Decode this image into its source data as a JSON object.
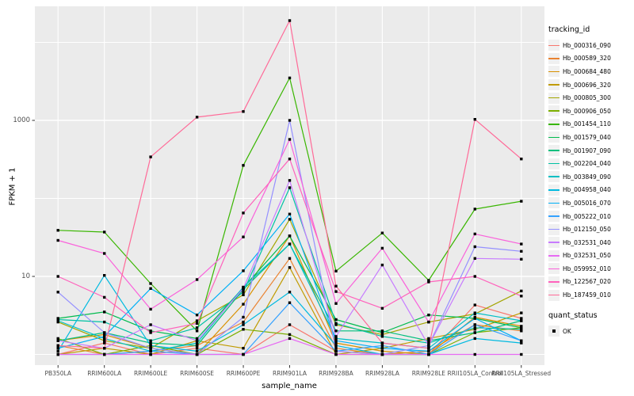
{
  "chart_data": {
    "type": "line",
    "title": "",
    "xlabel": "sample_name",
    "ylabel": "FPKM + 1",
    "y_scale": "log10",
    "y_tick_labels": [
      "1000",
      "10"
    ],
    "y_tick_values": [
      1000,
      10
    ],
    "y_gridlines": [
      1,
      10,
      100,
      1000,
      10000
    ],
    "ylim": [
      0.9,
      28000
    ],
    "grid": true,
    "legend_position": "right",
    "legend_title": "tracking_id",
    "panel_bg": "#EBEBEB",
    "grid_color": "#FFFFFF",
    "point_color": "#000000",
    "categories": [
      "PB350LA",
      "RRIM600LA",
      "RRIM600LE",
      "RRIM600SE",
      "RRIM600PE",
      "RRIM901LA",
      "RRIM928BA",
      "RRIM928LA",
      "RRIM928LE",
      "RRII105LA_Control",
      "RRII105LA_Stressed"
    ],
    "series": [
      {
        "name": "Hb_000316_090",
        "color": "#F8766D",
        "values": [
          1.0,
          1.4,
          1.0,
          1.2,
          1.0,
          2.4,
          1.1,
          1.0,
          1.0,
          4.3,
          2.9
        ]
      },
      {
        "name": "Hb_000589_320",
        "color": "#EA8331",
        "values": [
          1.3,
          1.0,
          1.1,
          1.3,
          2.6,
          17,
          1.2,
          1.0,
          1.1,
          2.4,
          2.0
        ]
      },
      {
        "name": "Hb_000684_480",
        "color": "#D89000",
        "values": [
          1.5,
          1.8,
          1.2,
          1.0,
          4.4,
          33,
          1.4,
          1.1,
          1.0,
          3.0,
          2.3
        ]
      },
      {
        "name": "Hb_000696_320",
        "color": "#C09B00",
        "values": [
          1.0,
          1.2,
          1.0,
          1.5,
          1.2,
          13,
          1.0,
          1.2,
          1.6,
          2.1,
          3.4
        ]
      },
      {
        "name": "Hb_000805_300",
        "color": "#A3A500",
        "values": [
          2.6,
          1.5,
          1.2,
          2.7,
          5.8,
          54,
          2.4,
          1.8,
          2.6,
          3.3,
          6.5
        ]
      },
      {
        "name": "Hb_000906_050",
        "color": "#7CAE00",
        "values": [
          1.6,
          1.0,
          1.3,
          1.0,
          2.1,
          1.8,
          1.0,
          1.0,
          1.0,
          1.9,
          2.2
        ]
      },
      {
        "name": "Hb_001454_110",
        "color": "#39B600",
        "values": [
          39,
          37,
          8.1,
          2.0,
          265,
          3500,
          11.7,
          36,
          8.9,
          73,
          92
        ]
      },
      {
        "name": "Hb_001579_040",
        "color": "#00BB4E",
        "values": [
          2.9,
          3.5,
          2.0,
          1.6,
          7.2,
          33,
          2.8,
          1.9,
          3.2,
          2.9,
          2.2
        ]
      },
      {
        "name": "Hb_001907_090",
        "color": "#00BF7D",
        "values": [
          1.5,
          1.9,
          1.4,
          1.3,
          6.8,
          26,
          2.0,
          2.0,
          1.5,
          1.9,
          2.7
        ]
      },
      {
        "name": "Hb_002204_040",
        "color": "#00C1A3",
        "values": [
          2.8,
          2.6,
          1.5,
          2.2,
          6.3,
          137,
          2.5,
          1.7,
          1.4,
          2.2,
          2.1
        ]
      },
      {
        "name": "Hb_003849_090",
        "color": "#00BFC4",
        "values": [
          2.7,
          1.6,
          1.1,
          1.4,
          7.3,
          26,
          1.6,
          1.4,
          1.2,
          3.4,
          2.7
        ]
      },
      {
        "name": "Hb_004958_040",
        "color": "#00BAE0",
        "values": [
          1.1,
          10.3,
          1.3,
          1.1,
          2.4,
          6.3,
          1.3,
          1.0,
          1.0,
          1.6,
          1.4
        ]
      },
      {
        "name": "Hb_005016_070",
        "color": "#00B0F6",
        "values": [
          1.2,
          1.7,
          7.0,
          3.2,
          11.8,
          63,
          1.5,
          1.2,
          1.1,
          2.9,
          1.5
        ]
      },
      {
        "name": "Hb_005222_010",
        "color": "#35A2FF",
        "values": [
          1.0,
          1.0,
          1.1,
          1.0,
          1.0,
          4.6,
          1.1,
          1.3,
          1.0,
          2.4,
          1.5
        ]
      },
      {
        "name": "Hb_012150_050",
        "color": "#9590FF",
        "values": [
          6.3,
          1.9,
          1.2,
          1.0,
          3.0,
          1000,
          1.1,
          1.0,
          1.3,
          24,
          21
        ]
      },
      {
        "name": "Hb_032531_040",
        "color": "#C77CFF",
        "values": [
          1.5,
          1.2,
          2.4,
          1.5,
          7.0,
          170,
          1.7,
          14,
          1.3,
          17,
          16.6
        ]
      },
      {
        "name": "Hb_032531_050",
        "color": "#E76BF3",
        "values": [
          1.0,
          1.0,
          1.0,
          1.0,
          1.0,
          1.6,
          1.0,
          1.0,
          1.0,
          1.0,
          1.0
        ]
      },
      {
        "name": "Hb_059952_010",
        "color": "#FA62DB",
        "values": [
          29,
          19.7,
          3.8,
          9.1,
          32,
          570,
          4.5,
          23,
          2.6,
          35,
          26
        ]
      },
      {
        "name": "Hb_122567_020",
        "color": "#FF62BC",
        "values": [
          10,
          5.4,
          1.9,
          2.5,
          65,
          320,
          6.4,
          3.9,
          8.5,
          10,
          5.6
        ]
      },
      {
        "name": "Hb_187459_010",
        "color": "#FF6A98",
        "values": [
          1.3,
          1.2,
          340,
          1100,
          1300,
          19000,
          7.5,
          1.4,
          1.2,
          1030,
          320
        ]
      }
    ],
    "quant_status": {
      "title": "quant_status",
      "items": [
        "OK"
      ]
    }
  }
}
